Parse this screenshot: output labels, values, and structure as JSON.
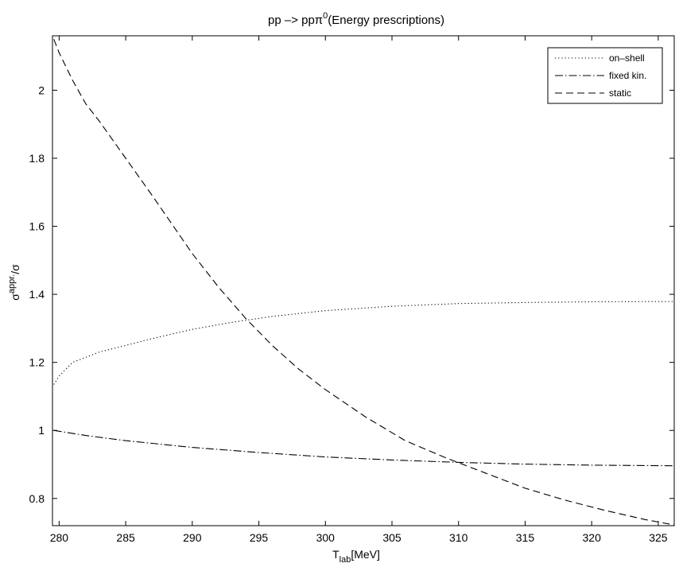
{
  "chart_data": {
    "type": "line",
    "title": {
      "prefix": "pp –> ppπ",
      "superscript": "0",
      "suffix": "(Energy prescriptions)"
    },
    "xlabel": {
      "main": "T",
      "sub": "lab",
      "rest": "[MeV]"
    },
    "ylabel": {
      "main": "σ",
      "sup": "appr.",
      "rest": "/σ"
    },
    "xlim": [
      279.5,
      326.2
    ],
    "ylim": [
      0.72,
      2.16
    ],
    "xticks": [
      280,
      285,
      290,
      295,
      300,
      305,
      310,
      315,
      320,
      325
    ],
    "yticks": [
      0.8,
      1,
      1.2,
      1.4,
      1.6,
      1.8,
      2
    ],
    "ytick_labels": [
      "0.8",
      "1",
      "1.2",
      "1.4",
      "1.6",
      "1.8",
      "2"
    ],
    "grid": false,
    "legend_position": "top-right",
    "series": [
      {
        "name": "on–shell",
        "dash": "dotted",
        "x": [
          279.6,
          280,
          281,
          282,
          283,
          285,
          287,
          290,
          293,
          296,
          300,
          305,
          310,
          315,
          320,
          326.2
        ],
        "y": [
          1.135,
          1.16,
          1.2,
          1.215,
          1.23,
          1.25,
          1.27,
          1.297,
          1.318,
          1.335,
          1.352,
          1.365,
          1.373,
          1.376,
          1.378,
          1.379
        ]
      },
      {
        "name": "fixed kin.",
        "dash": "dashdot",
        "x": [
          279.6,
          282,
          285,
          290,
          295,
          300,
          305,
          310,
          315,
          320,
          326.2
        ],
        "y": [
          1.0,
          0.985,
          0.97,
          0.95,
          0.935,
          0.922,
          0.913,
          0.906,
          0.901,
          0.898,
          0.896
        ]
      },
      {
        "name": "static",
        "dash": "dashed",
        "x": [
          279.6,
          280,
          281,
          282,
          283,
          285,
          287,
          290,
          292,
          294,
          296,
          298,
          300,
          303,
          306,
          309,
          312,
          315,
          318,
          321,
          324,
          326.2
        ],
        "y": [
          2.15,
          2.11,
          2.03,
          1.96,
          1.91,
          1.8,
          1.69,
          1.52,
          1.42,
          1.33,
          1.25,
          1.18,
          1.12,
          1.04,
          0.97,
          0.92,
          0.875,
          0.83,
          0.795,
          0.765,
          0.738,
          0.722
        ]
      }
    ]
  }
}
